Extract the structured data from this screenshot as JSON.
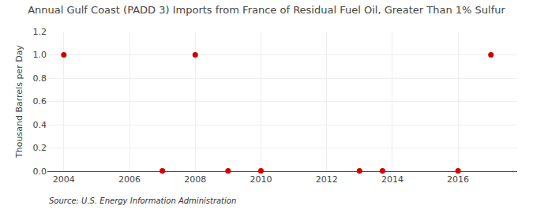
{
  "chart_data": {
    "type": "scatter",
    "title": "Annual Gulf Coast (PADD 3) Imports from France of Residual Fuel Oil, Greater Than 1% Sulfur",
    "ylabel": "Thousand Barrels per Day",
    "annotations": [
      "Source: U.S. Energy Information Administration"
    ],
    "x": [
      2004,
      2007,
      2008,
      2009,
      2010,
      2013,
      2013.7,
      2016,
      2017
    ],
    "values": [
      1.0,
      0.003,
      1.0,
      0.003,
      0.003,
      0.003,
      0.003,
      0.003,
      1.0
    ],
    "color": "#cc0000",
    "marker": "circle",
    "xlim": [
      2003.5,
      2017.8
    ],
    "ylim": [
      0.0,
      1.2
    ],
    "xticks": [
      2004,
      2006,
      2008,
      2010,
      2012,
      2014,
      2016
    ],
    "yticks": [
      {
        "value": 0.0,
        "label": "0.0"
      },
      0.2,
      0.4,
      0.6,
      0.8,
      {
        "value": 1.0,
        "label": "1.0"
      },
      1.2
    ],
    "grid": true
  }
}
